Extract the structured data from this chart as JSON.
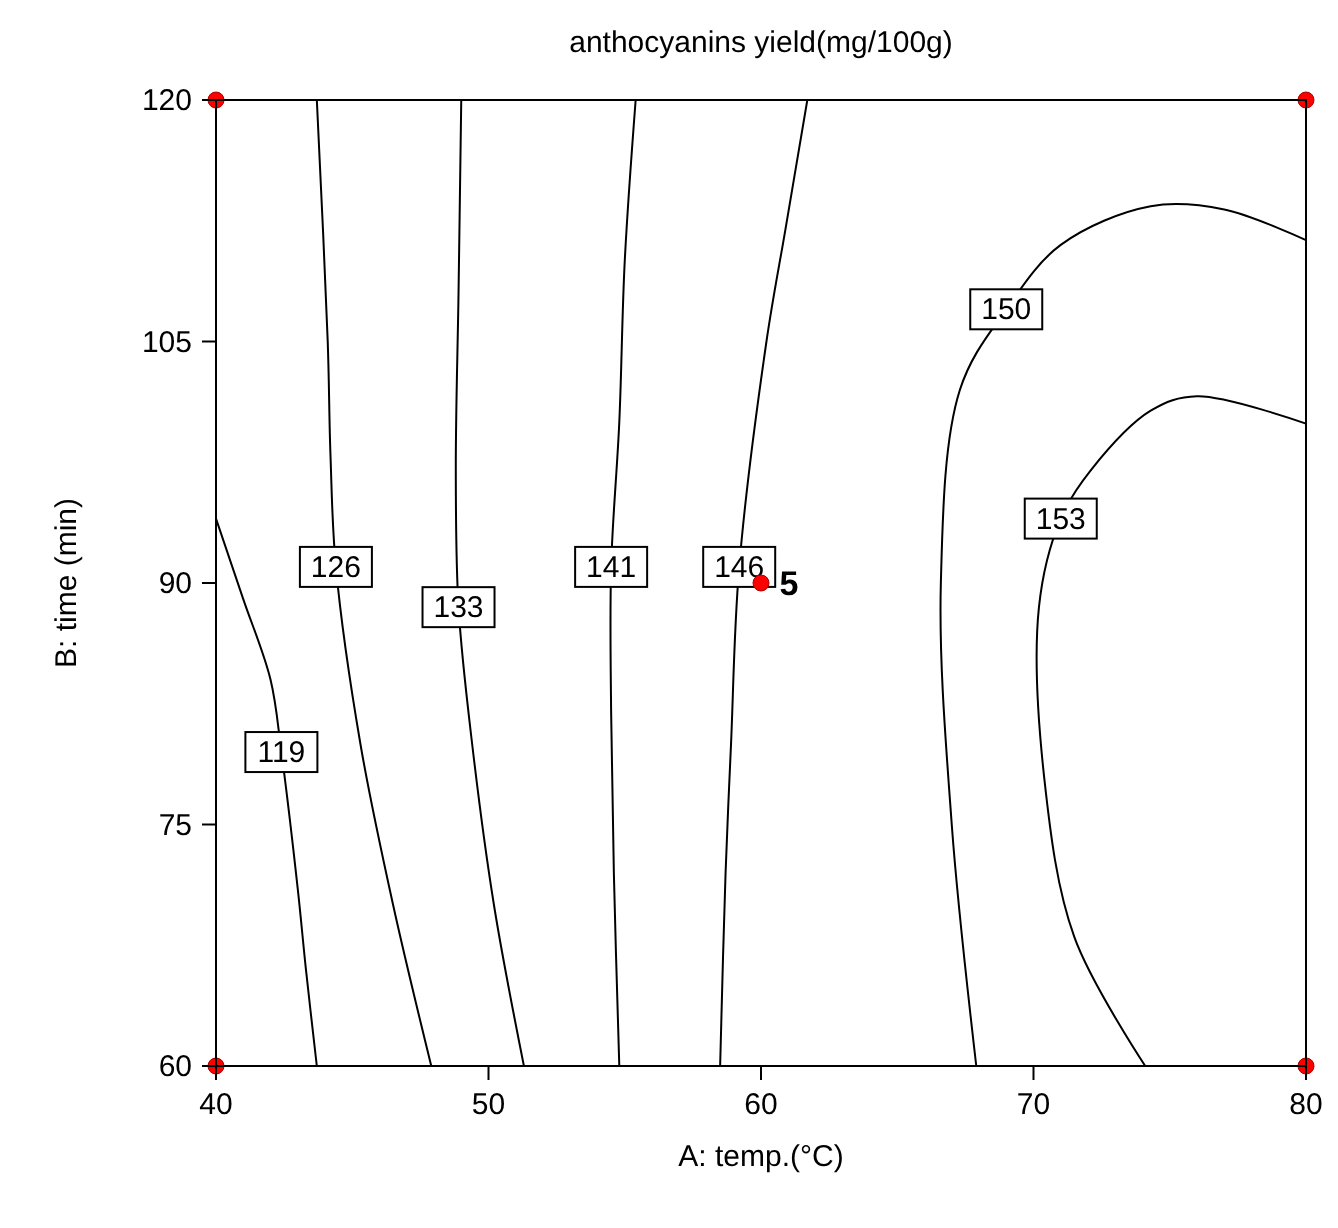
{
  "chart_data": {
    "type": "line",
    "title": "anthocyanins yield(mg/100g)",
    "xlabel": "A: temp.(°C)",
    "ylabel": "B: time (min)",
    "xlim": [
      40,
      80
    ],
    "ylim": [
      60,
      120
    ],
    "xticks": [
      40,
      50,
      60,
      70,
      80
    ],
    "yticks": [
      60,
      75,
      90,
      105,
      120
    ],
    "series": [
      {
        "name": "119",
        "color": "#000000",
        "x": [
          40,
          41,
          42,
          42.4,
          43,
          43.3,
          43.7
        ],
        "values": [
          94,
          89,
          84,
          79.5,
          71,
          66,
          60
        ]
      },
      {
        "name": "126",
        "color": "#000000",
        "x": [
          43.7,
          44.1,
          44.2,
          44.4,
          45.3,
          46.5,
          47.9
        ],
        "values": [
          120,
          105,
          98,
          91,
          80,
          70,
          60
        ]
      },
      {
        "name": "133",
        "color": "#000000",
        "x": [
          49,
          48.9,
          48.8,
          48.9,
          49.4,
          50.2,
          51.3
        ],
        "values": [
          120,
          108,
          97,
          88.5,
          80,
          70,
          60
        ]
      },
      {
        "name": "141",
        "color": "#000000",
        "x": [
          55.4,
          55,
          54.8,
          54.5,
          54.5,
          54.6,
          54.8
        ],
        "values": [
          120,
          110,
          100,
          91,
          82,
          72,
          60
        ]
      },
      {
        "name": "146",
        "color": "#000000",
        "x": [
          61.7,
          60.9,
          60.2,
          59.2,
          58.9,
          58.7,
          58.5
        ],
        "values": [
          120,
          112,
          105,
          91,
          80,
          72,
          60
        ]
      },
      {
        "name": "150",
        "color": "#000000",
        "x": [
          67.9,
          67,
          66.6,
          67.3,
          69,
          71,
          74.3,
          77,
          80
        ],
        "values": [
          60,
          75,
          90,
          102,
          107,
          111,
          113.4,
          113.2,
          111.3
        ]
      },
      {
        "name": "153",
        "color": "#000000",
        "x": [
          74.1,
          71.5,
          70.4,
          70.2,
          71,
          72.1,
          74.3,
          76,
          80
        ],
        "values": [
          60,
          68,
          77.8,
          88.5,
          94,
          97,
          100.7,
          101.6,
          99.9
        ]
      },
      {
        "type": "scatter",
        "color": "#ff0000",
        "marker": "circle",
        "x": [
          40,
          80,
          40,
          80,
          60
        ],
        "values": [
          60,
          60,
          120,
          120,
          90
        ]
      }
    ],
    "annotations": [
      {
        "text": "5",
        "x": 60,
        "y": 90
      }
    ]
  }
}
